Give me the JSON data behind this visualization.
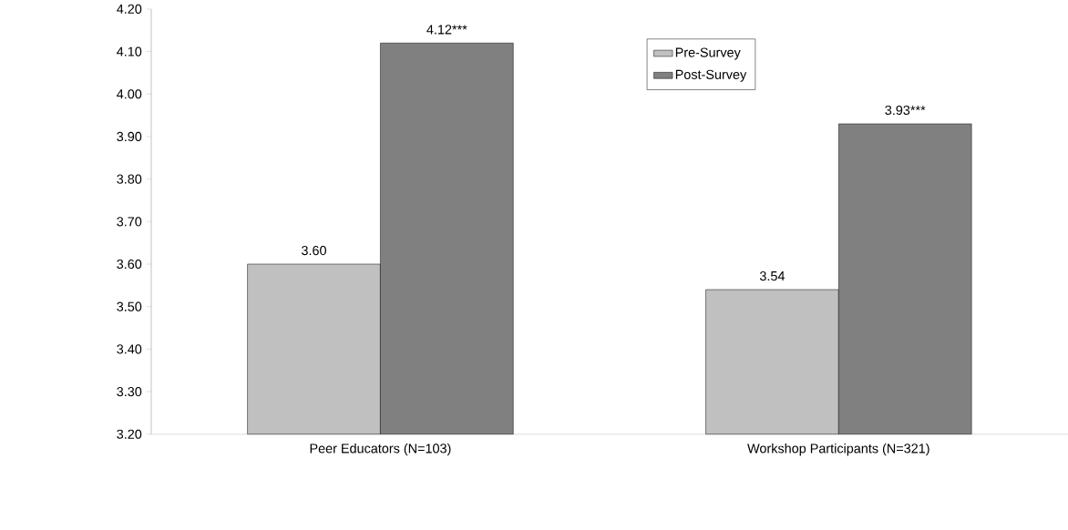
{
  "chart_data": {
    "type": "bar",
    "categories": [
      "Peer Educators (N=103)",
      "Workshop Participants (N=321)"
    ],
    "series": [
      {
        "name": "Pre-Survey",
        "color": "#c0c0c0",
        "values": [
          3.6,
          3.54
        ],
        "value_labels": [
          "3.60",
          "3.54"
        ]
      },
      {
        "name": "Post-Survey",
        "color": "#808080",
        "values": [
          4.12,
          3.93
        ],
        "value_labels": [
          "4.12***",
          "3.93***"
        ]
      }
    ],
    "ylim": [
      3.2,
      4.2
    ],
    "yticks": [
      {
        "value": 3.2,
        "label": "3.20"
      },
      {
        "value": 3.3,
        "label": "3.30"
      },
      {
        "value": 3.4,
        "label": "3.40"
      },
      {
        "value": 3.5,
        "label": "3.50"
      },
      {
        "value": 3.6,
        "label": "3.60"
      },
      {
        "value": 3.7,
        "label": "3.70"
      },
      {
        "value": 3.8,
        "label": "3.80"
      },
      {
        "value": 3.9,
        "label": "3.90"
      },
      {
        "value": 4.0,
        "label": "4.00"
      },
      {
        "value": 4.1,
        "label": "4.10"
      },
      {
        "value": 4.2,
        "label": "4.20"
      }
    ],
    "grid": false,
    "legend": "top"
  }
}
